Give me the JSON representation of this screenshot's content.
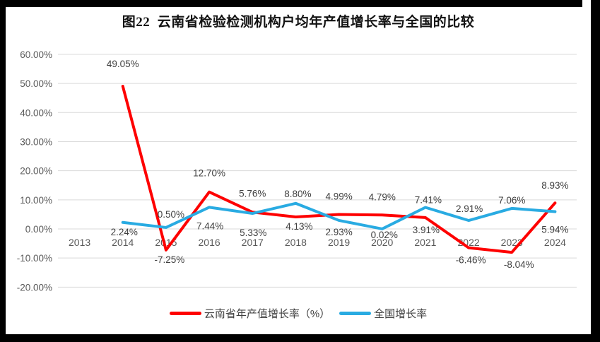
{
  "title": "图22  云南省检验检测机构户均年产值增长率与全国的比较",
  "frame": {
    "border_color": "#000000",
    "chart_background": "#FFFFFF"
  },
  "chart_data": {
    "type": "line",
    "categories": [
      "2013",
      "2014",
      "2015",
      "2016",
      "2017",
      "2018",
      "2019",
      "2020",
      "2021",
      "2022",
      "2023",
      "2024"
    ],
    "series": [
      {
        "name": "云南省年产值增长率（%）",
        "color": "#FE0000",
        "values": [
          null,
          49.05,
          -7.25,
          12.7,
          5.76,
          4.13,
          4.99,
          4.79,
          3.91,
          -6.46,
          -8.04,
          8.93
        ],
        "label_offsets": [
          [
            0,
            0
          ],
          [
            0,
            -32
          ],
          [
            5,
            13
          ],
          [
            0,
            -27
          ],
          [
            0,
            -27
          ],
          [
            5,
            13
          ],
          [
            0,
            -26
          ],
          [
            0,
            -26
          ],
          [
            1,
            17
          ],
          [
            3,
            17
          ],
          [
            10,
            17
          ],
          [
            0,
            -25
          ]
        ]
      },
      {
        "name": "全国增长率",
        "color": "#29ABE2",
        "values": [
          null,
          2.24,
          0.5,
          7.44,
          5.33,
          8.8,
          2.93,
          0.02,
          7.41,
          2.91,
          7.06,
          5.94
        ],
        "label_offsets": [
          [
            0,
            0
          ],
          [
            2,
            13
          ],
          [
            7,
            -19
          ],
          [
            1,
            26
          ],
          [
            1,
            27
          ],
          [
            3,
            -14
          ],
          [
            0,
            16
          ],
          [
            3,
            8
          ],
          [
            4,
            -11
          ],
          [
            1,
            -17
          ],
          [
            0,
            -12
          ],
          [
            0,
            25
          ]
        ]
      }
    ],
    "ylim": [
      -20,
      60
    ],
    "ytick_step": 10,
    "ytick_labels": [
      "60.00%",
      "50.00%",
      "40.00%",
      "30.00%",
      "20.00%",
      "10.00%",
      "0.00%",
      "-10.00%",
      "-20.00%"
    ],
    "value_format": "0.00%",
    "grid": true,
    "legend_position": "bottom",
    "gridline_color": "#D9D9D9",
    "axis_label_color": "#595959",
    "data_label_color": "#404040"
  }
}
